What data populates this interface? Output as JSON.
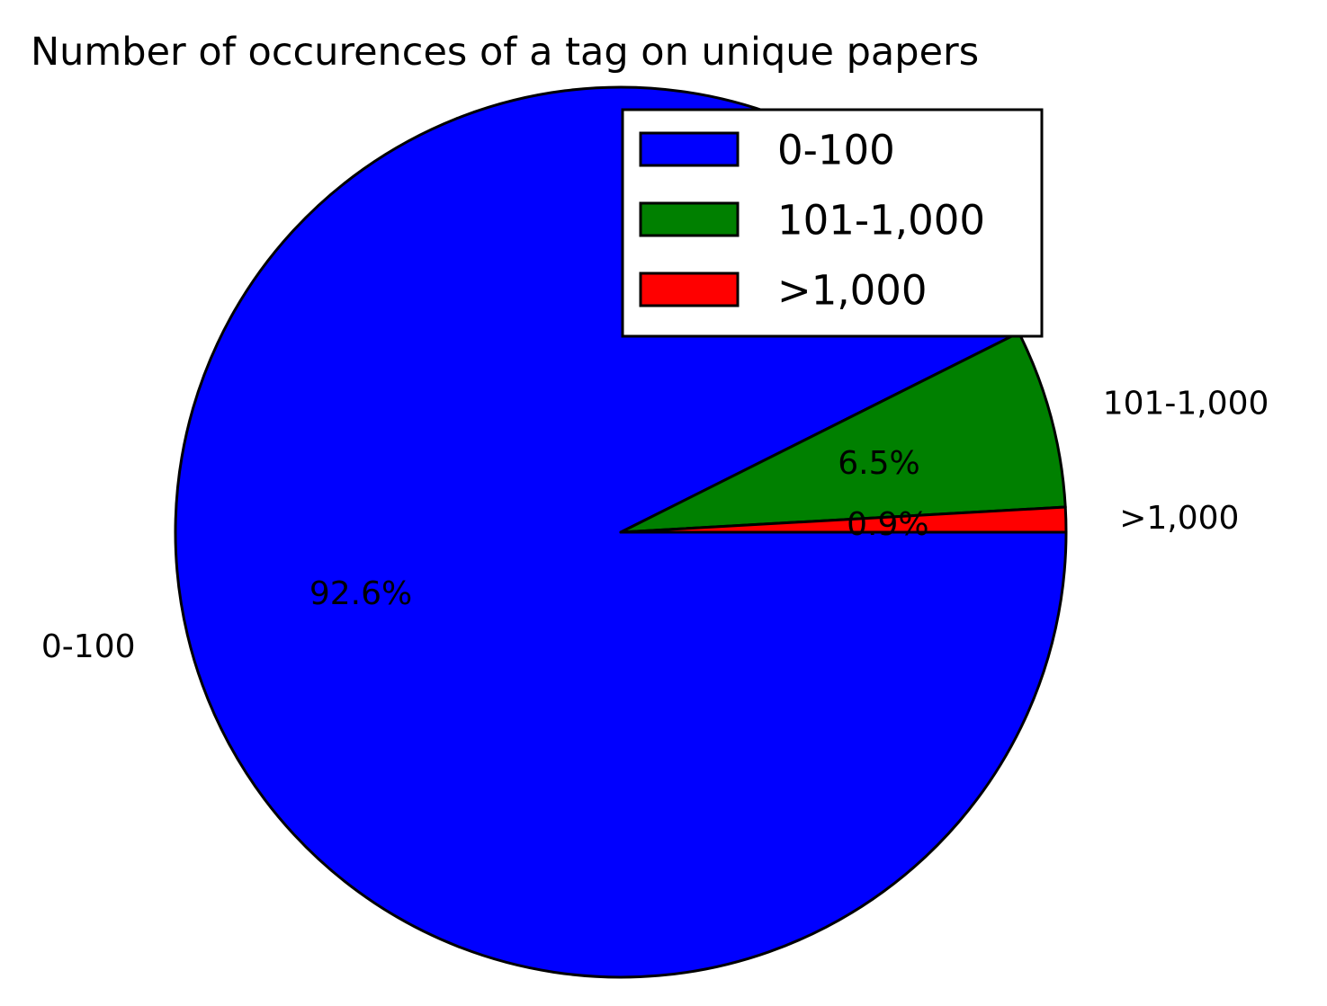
{
  "chart_data": {
    "type": "pie",
    "title": "Number of occurences of a tag on unique papers",
    "labels": [
      "0-100",
      "101-1,000",
      ">1,000"
    ],
    "percent_labels": [
      "92.6%",
      "6.5%",
      "0.9%"
    ],
    "values": [
      92.6,
      6.5,
      0.9
    ],
    "colors": [
      "#0000ff",
      "#008000",
      "#ff0000"
    ],
    "start_angle_deg": 0,
    "direction": "clockwise",
    "legend": {
      "placement": "upper-right",
      "entries": [
        "0-100",
        "101-1,000",
        ">1,000"
      ]
    }
  }
}
